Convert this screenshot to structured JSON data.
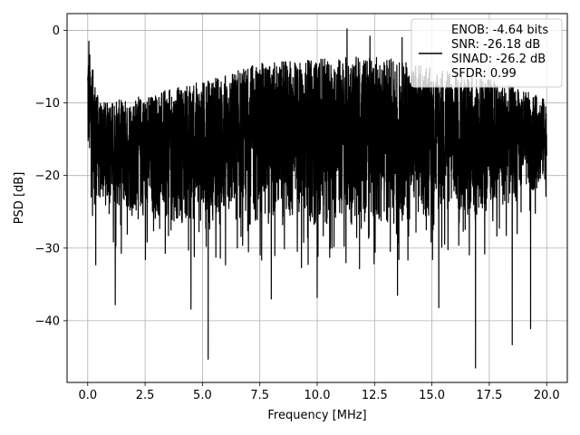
{
  "chart_data": {
    "type": "line",
    "xlabel": "Frequency [MHz]",
    "ylabel": "PSD [dB]",
    "xlim": [
      -0.9,
      20.9
    ],
    "ylim": [
      -48.5,
      2.3
    ],
    "x_ticks": [
      0.0,
      2.5,
      5.0,
      7.5,
      10.0,
      12.5,
      15.0,
      17.5,
      20.0
    ],
    "x_tick_labels": [
      "0.0",
      "2.5",
      "5.0",
      "7.5",
      "10.0",
      "12.5",
      "15.0",
      "17.5",
      "20.0"
    ],
    "y_ticks": [
      0,
      -10,
      -20,
      -30,
      -40
    ],
    "y_tick_labels": [
      "0",
      "−10",
      "−20",
      "−30",
      "−40"
    ],
    "grid": true,
    "line_color": "#000000",
    "legend_location": "top-right",
    "legend_entries": [
      "ENOB: -4.64 bits",
      "SNR: -26.18 dB",
      "SINAD: -26.2 dB",
      "SFDR: 0.99"
    ],
    "series": [
      {
        "x_start": 0.0,
        "x_end": 20.0,
        "envelope_upper": [
          [
            0.0,
            -1.5
          ],
          [
            0.5,
            -10
          ],
          [
            2.5,
            -9
          ],
          [
            5.0,
            -7
          ],
          [
            7.5,
            -4.5
          ],
          [
            10.0,
            -4
          ],
          [
            12.5,
            -3.5
          ],
          [
            15.0,
            -5
          ],
          [
            17.5,
            -6.5
          ],
          [
            20.0,
            -9.5
          ]
        ],
        "envelope_lower": [
          [
            0.0,
            -20
          ],
          [
            0.5,
            -24
          ],
          [
            2.5,
            -26
          ],
          [
            5.0,
            -27
          ],
          [
            7.5,
            -27
          ],
          [
            10.0,
            -27
          ],
          [
            12.5,
            -27
          ],
          [
            15.0,
            -26
          ],
          [
            17.5,
            -26
          ],
          [
            20.0,
            -21
          ]
        ],
        "notable_points": [
          {
            "x": 0.05,
            "y": -1.5
          },
          {
            "x": 11.3,
            "y": 0.2
          },
          {
            "x": 12.3,
            "y": -0.8
          },
          {
            "x": 13.7,
            "y": -1.0
          },
          {
            "x": 0.35,
            "y": -32.3
          },
          {
            "x": 1.2,
            "y": -37.8
          },
          {
            "x": 4.5,
            "y": -38.4
          },
          {
            "x": 5.25,
            "y": -45.3
          },
          {
            "x": 8.0,
            "y": -37.0
          },
          {
            "x": 10.0,
            "y": -36.8
          },
          {
            "x": 13.5,
            "y": -36.5
          },
          {
            "x": 15.3,
            "y": -38.2
          },
          {
            "x": 16.9,
            "y": -46.5
          },
          {
            "x": 18.5,
            "y": -43.3
          },
          {
            "x": 19.3,
            "y": -41.1
          }
        ]
      }
    ]
  }
}
